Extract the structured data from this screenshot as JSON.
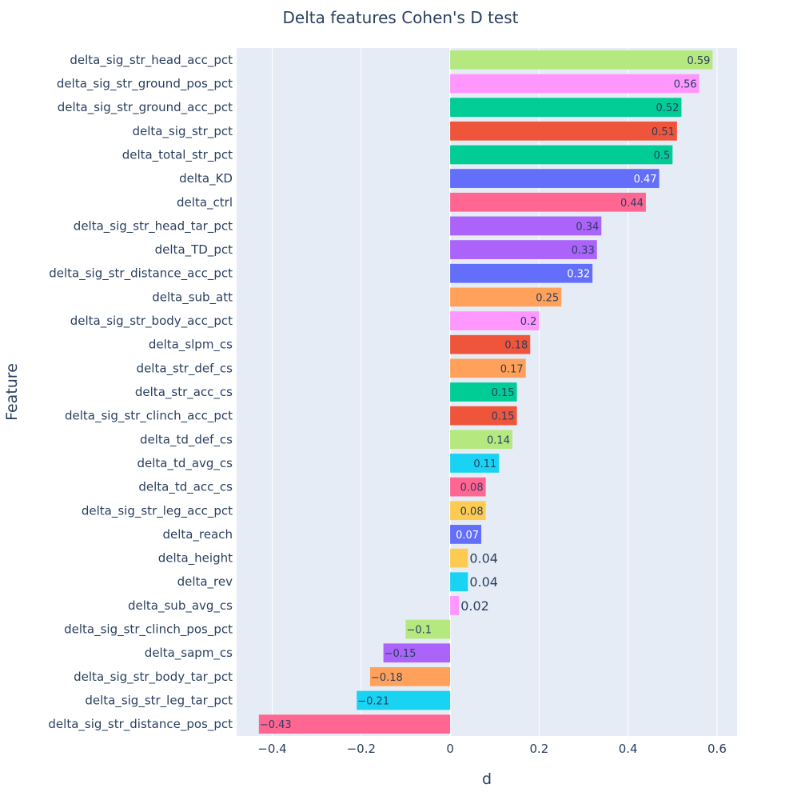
{
  "chart_data": {
    "type": "bar",
    "orientation": "horizontal",
    "title": "Delta features Cohen's D test",
    "xlabel": "d",
    "ylabel": "Feature",
    "xlim": [
      -0.48,
      0.645
    ],
    "xticks": [
      -0.4,
      -0.2,
      0,
      0.2,
      0.4,
      0.6
    ],
    "xtick_labels": [
      "−0.4",
      "−0.2",
      "0",
      "0.2",
      "0.4",
      "0.6"
    ],
    "grid": true,
    "legend": "none",
    "categories": [
      "delta_sig_str_head_acc_pct",
      "delta_sig_str_ground_pos_pct",
      "delta_sig_str_ground_acc_pct",
      "delta_sig_str_pct",
      "delta_total_str_pct",
      "delta_KD",
      "delta_ctrl",
      "delta_sig_str_head_tar_pct",
      "delta_TD_pct",
      "delta_sig_str_distance_acc_pct",
      "delta_sub_att",
      "delta_sig_str_body_acc_pct",
      "delta_slpm_cs",
      "delta_str_def_cs",
      "delta_str_acc_cs",
      "delta_sig_str_clinch_acc_pct",
      "delta_td_def_cs",
      "delta_td_avg_cs",
      "delta_td_acc_cs",
      "delta_sig_str_leg_acc_pct",
      "delta_reach",
      "delta_height",
      "delta_rev",
      "delta_sub_avg_cs",
      "delta_sig_str_clinch_pos_pct",
      "delta_sapm_cs",
      "delta_sig_str_body_tar_pct",
      "delta_sig_str_leg_tar_pct",
      "delta_sig_str_distance_pos_pct"
    ],
    "values": [
      0.59,
      0.56,
      0.52,
      0.51,
      0.5,
      0.47,
      0.44,
      0.34,
      0.33,
      0.32,
      0.25,
      0.2,
      0.18,
      0.17,
      0.15,
      0.15,
      0.14,
      0.11,
      0.08,
      0.08,
      0.07,
      0.04,
      0.04,
      0.02,
      -0.1,
      -0.15,
      -0.18,
      -0.21,
      -0.43
    ],
    "value_labels": [
      "0.59",
      "0.56",
      "0.52",
      "0.51",
      "0.5",
      "0.47",
      "0.44",
      "0.34",
      "0.33",
      "0.32",
      "0.25",
      "0.2",
      "0.18",
      "0.17",
      "0.15",
      "0.15",
      "0.14",
      "0.11",
      "0.08",
      "0.08",
      "0.07",
      "0.04",
      "0.04",
      "0.02",
      "−0.1",
      "−0.15",
      "−0.18",
      "−0.21",
      "−0.43"
    ],
    "colors": [
      "#B6E880",
      "#FF97FF",
      "#00CC96",
      "#EF553B",
      "#00CC96",
      "#636EFA",
      "#FF6692",
      "#AB63FA",
      "#AB63FA",
      "#636EFA",
      "#FFA15A",
      "#FF97FF",
      "#EF553B",
      "#FFA15A",
      "#00CC96",
      "#EF553B",
      "#B6E880",
      "#19D3F3",
      "#FF6692",
      "#FECB52",
      "#636EFA",
      "#FECB52",
      "#19D3F3",
      "#FF97FF",
      "#B6E880",
      "#AB63FA",
      "#FFA15A",
      "#19D3F3",
      "#FF6692"
    ],
    "label_colors": [
      "#2a3f5f",
      "#2a3f5f",
      "#2a3f5f",
      "#2a3f5f",
      "#2a3f5f",
      "#ffffff",
      "#2a3f5f",
      "#2a3f5f",
      "#2a3f5f",
      "#ffffff",
      "#2a3f5f",
      "#2a3f5f",
      "#2a3f5f",
      "#2a3f5f",
      "#2a3f5f",
      "#2a3f5f",
      "#2a3f5f",
      "#2a3f5f",
      "#2a3f5f",
      "#2a3f5f",
      "#ffffff",
      "#2a3f5f",
      "#2a3f5f",
      "#2a3f5f",
      "#2a3f5f",
      "#2a3f5f",
      "#2a3f5f",
      "#2a3f5f",
      "#2a3f5f"
    ],
    "plot_background": "#E5ECF6",
    "grid_color": "#ffffff",
    "text_color": "#2a3f5f"
  }
}
